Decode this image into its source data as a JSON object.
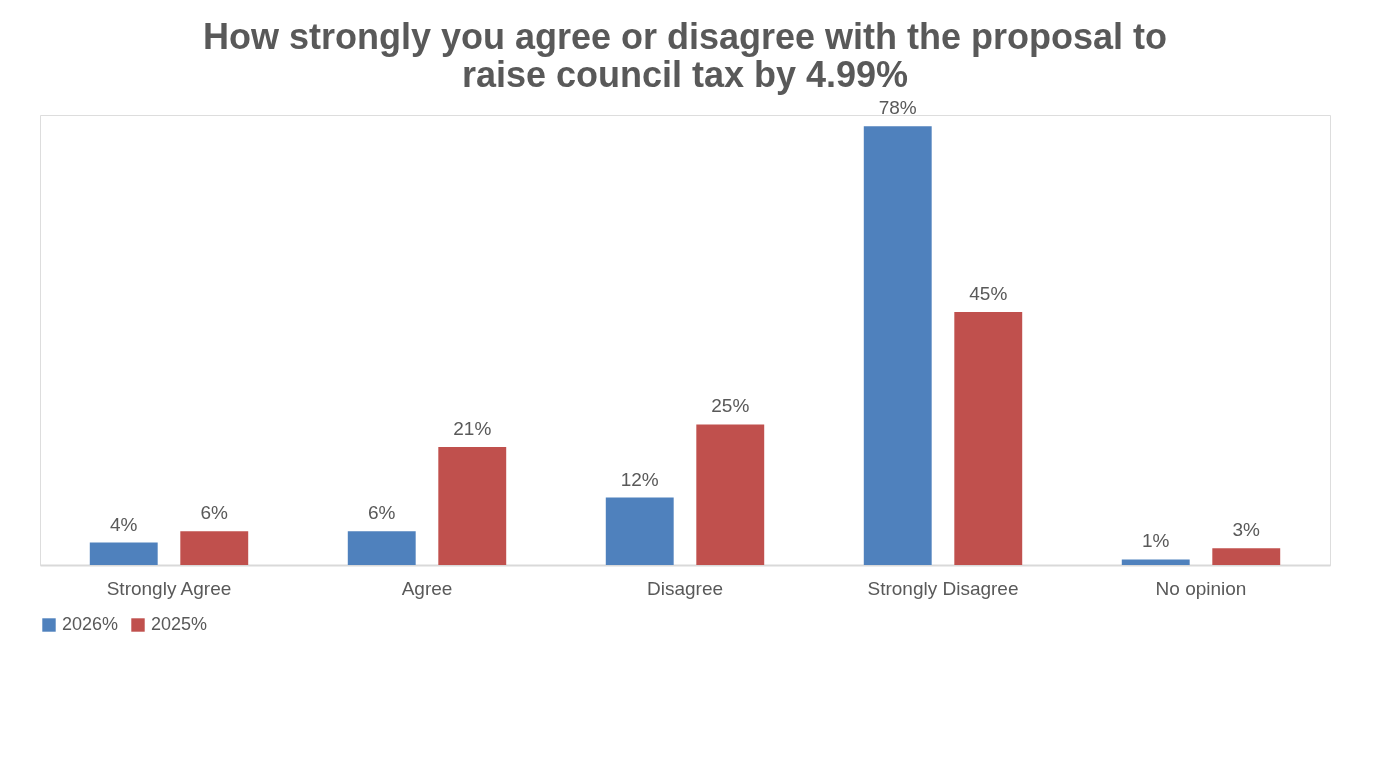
{
  "chart_data": {
    "type": "bar",
    "title": "How strongly you agree or disagree with the proposal to raise council tax by 4.99%",
    "categories": [
      "Strongly Agree",
      "Agree",
      "Disagree",
      "Strongly Disagree",
      "No opinion"
    ],
    "series": [
      {
        "name": "2026%",
        "color": "#4f81bd",
        "values": [
          4,
          6,
          12,
          78,
          1
        ],
        "value_labels": [
          "4%",
          "6%",
          "12%",
          "78%",
          "1%"
        ]
      },
      {
        "name": "2025%",
        "color": "#c0504d",
        "values": [
          6,
          21,
          25,
          45,
          3
        ],
        "value_labels": [
          "6%",
          "21%",
          "25%",
          "45%",
          "3%"
        ]
      }
    ],
    "legend": "bottom",
    "grid": false
  }
}
